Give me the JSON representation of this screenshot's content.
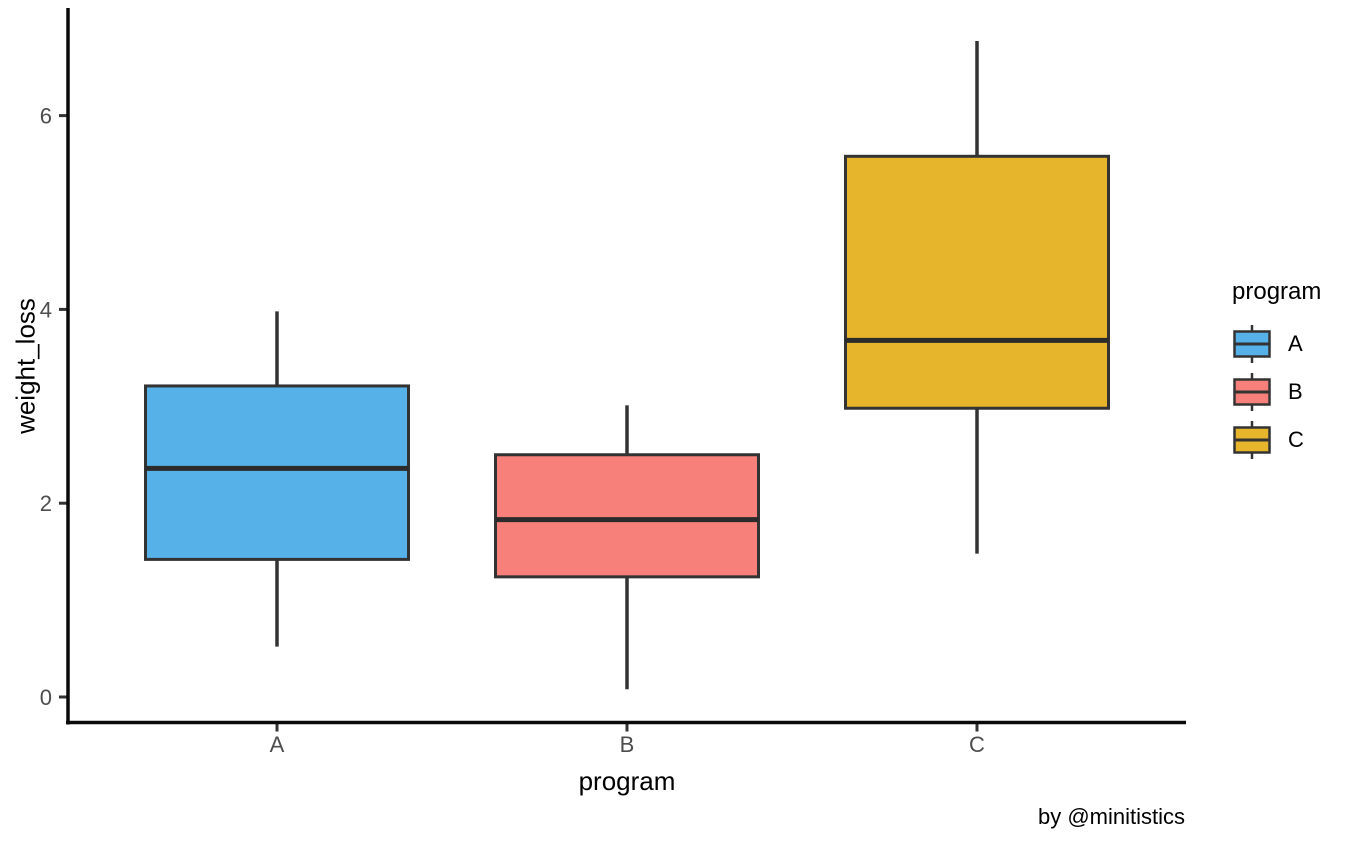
{
  "caption": "by @minitistics",
  "chart_data": {
    "type": "boxplot",
    "title": "",
    "xlabel": "program",
    "ylabel": "weight_loss",
    "x_categories": [
      "A",
      "B",
      "C"
    ],
    "y_ticks": [
      0,
      2,
      4,
      6
    ],
    "ylim": [
      -0.3,
      7.1
    ],
    "grid": "off",
    "legend": {
      "title": "program",
      "position": "right",
      "items": [
        "A",
        "B",
        "C"
      ]
    },
    "series": [
      {
        "name": "A",
        "color": "#56B1E8",
        "whisker_low": 0.52,
        "q1": 1.42,
        "median": 2.36,
        "q3": 3.21,
        "whisker_high": 3.98
      },
      {
        "name": "B",
        "color": "#F8807A",
        "whisker_low": 0.08,
        "q1": 1.24,
        "median": 1.83,
        "q3": 2.5,
        "whisker_high": 3.01
      },
      {
        "name": "C",
        "color": "#E7B52B",
        "whisker_low": 1.48,
        "q1": 2.98,
        "median": 3.68,
        "q3": 5.58,
        "whisker_high": 6.77
      }
    ],
    "box_border_color": "#333333",
    "median_color": "#2b2b2b",
    "axis_color": "#0a0a0a",
    "tick_label_color": "#4d4d4d"
  }
}
